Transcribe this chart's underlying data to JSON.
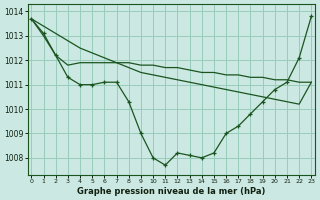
{
  "background_color": "#cce8e2",
  "grid_color": "#99ccbb",
  "line_color": "#1a5520",
  "xlabel": "Graphe pression niveau de la mer (hPa)",
  "ylim": [
    1007.3,
    1014.3
  ],
  "xlim": [
    -0.3,
    23.3
  ],
  "ytick_values": [
    1008,
    1009,
    1010,
    1011,
    1012,
    1013,
    1014
  ],
  "series1_x": [
    0,
    1,
    2,
    3,
    4,
    5,
    6,
    7,
    8,
    9,
    10,
    11,
    12,
    13,
    14,
    15,
    16,
    17,
    18,
    19,
    20,
    21,
    22,
    23
  ],
  "series1_y": [
    1013.7,
    1013.1,
    1012.2,
    1011.3,
    1011.0,
    1011.0,
    1011.1,
    1011.1,
    1010.3,
    1009.0,
    1008.0,
    1007.7,
    1008.2,
    1008.1,
    1008.0,
    1008.2,
    1009.0,
    1009.3,
    1009.8,
    1010.3,
    1010.8,
    1011.1,
    1012.1,
    1013.8
  ],
  "series2_x": [
    0,
    1,
    2,
    3,
    4,
    5,
    6,
    7,
    8,
    9,
    10,
    11,
    12,
    13,
    14,
    15,
    16,
    17,
    18,
    19,
    20,
    21,
    22,
    23
  ],
  "series2_y": [
    1013.7,
    1013.4,
    1013.1,
    1012.8,
    1012.5,
    1012.3,
    1012.1,
    1011.9,
    1011.7,
    1011.5,
    1011.4,
    1011.3,
    1011.2,
    1011.1,
    1011.0,
    1010.9,
    1010.8,
    1010.7,
    1010.6,
    1010.5,
    1010.4,
    1010.3,
    1010.2,
    1011.1
  ],
  "series3_x": [
    0,
    1,
    2,
    3,
    4,
    5,
    6,
    7,
    8,
    9,
    10,
    11,
    12,
    13,
    14,
    15,
    16,
    17,
    18,
    19,
    20,
    21,
    22,
    23
  ],
  "series3_y": [
    1013.7,
    1013.0,
    1012.2,
    1011.8,
    1011.9,
    1011.9,
    1011.9,
    1011.9,
    1011.9,
    1011.8,
    1011.8,
    1011.7,
    1011.7,
    1011.6,
    1011.5,
    1011.5,
    1011.4,
    1011.4,
    1011.3,
    1011.3,
    1011.2,
    1011.2,
    1011.1,
    1011.1
  ]
}
